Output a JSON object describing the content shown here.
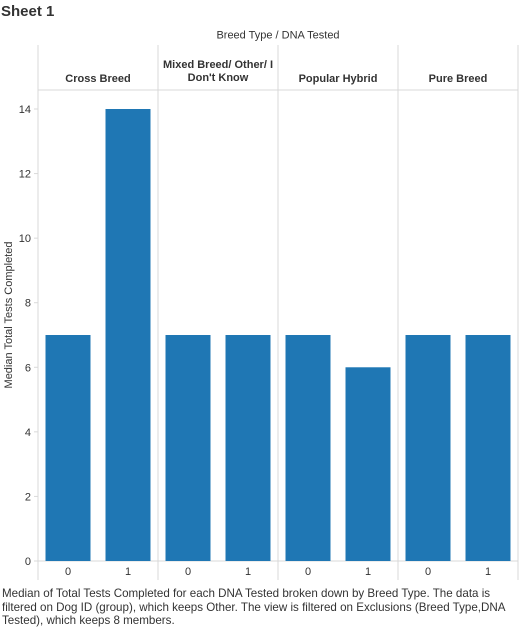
{
  "sheet": {
    "title": "Sheet 1"
  },
  "caption": "Median of Total Tests Completed for each DNA Tested broken down by Breed Type.  The data is filtered on Dog ID (group), which keeps Other. The view is filtered on Exclusions (Breed Type,DNA Tested), which keeps 8 members.",
  "colors": {
    "bar": "#1f77b4",
    "grid": "#d9d9d9",
    "text": "#333333"
  },
  "chart_data": {
    "type": "bar",
    "column_header": "Breed Type  /  DNA Tested",
    "ylabel": "Median Total Tests Completed",
    "ylim": [
      0,
      15
    ],
    "yticks": [
      0,
      2,
      4,
      6,
      8,
      10,
      12,
      14
    ],
    "groups": [
      {
        "name": "Cross Breed",
        "categories": [
          "0",
          "1"
        ],
        "values": [
          7,
          14
        ]
      },
      {
        "name": "Mixed Breed/ Other/ I Don't Know",
        "name_lines": [
          "Mixed Breed/ Other/ I",
          "Don't Know"
        ],
        "categories": [
          "0",
          "1"
        ],
        "values": [
          7,
          7
        ]
      },
      {
        "name": "Popular Hybrid",
        "categories": [
          "0",
          "1"
        ],
        "values": [
          7,
          6
        ]
      },
      {
        "name": "Pure Breed",
        "categories": [
          "0",
          "1"
        ],
        "values": [
          7,
          7
        ]
      }
    ]
  }
}
